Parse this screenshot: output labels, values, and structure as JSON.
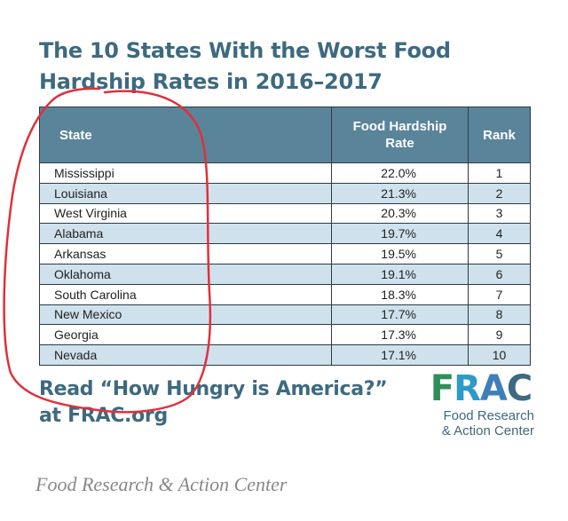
{
  "title": "The 10 States With the Worst Food Hardship Rates in 2016–2017",
  "table": {
    "headers": {
      "state": "State",
      "rate": "Food Hardship Rate",
      "rank": "Rank"
    },
    "rows": [
      {
        "state": "Mississippi",
        "rate": "22.0%",
        "rank": "1"
      },
      {
        "state": "Louisiana",
        "rate": "21.3%",
        "rank": "2"
      },
      {
        "state": "West Virginia",
        "rate": "20.3%",
        "rank": "3"
      },
      {
        "state": "Alabama",
        "rate": "19.7%",
        "rank": "4"
      },
      {
        "state": "Arkansas",
        "rate": "19.5%",
        "rank": "5"
      },
      {
        "state": "Oklahoma",
        "rate": "19.1%",
        "rank": "6"
      },
      {
        "state": "South Carolina",
        "rate": "18.3%",
        "rank": "7"
      },
      {
        "state": "New Mexico",
        "rate": "17.7%",
        "rank": "8"
      },
      {
        "state": "Georgia",
        "rate": "17.3%",
        "rank": "9"
      },
      {
        "state": "Nevada",
        "rate": "17.1%",
        "rank": "10"
      }
    ]
  },
  "footer": {
    "read_line": "Read “How Hungry is America?” at FRAC.org"
  },
  "logo": {
    "letters": [
      "F",
      "R",
      "A",
      "C"
    ],
    "subtitle_line1": "Food Research",
    "subtitle_line2": "& Action Center"
  },
  "caption": "Food Research & Action Center",
  "colors": {
    "brand": "#3d6a80",
    "header_bg": "#5a8499",
    "stripe": "#cfe1ec",
    "annotation": "#e0303b",
    "logo_green": "#2e8f5a",
    "logo_blue": "#2e9ac8"
  }
}
